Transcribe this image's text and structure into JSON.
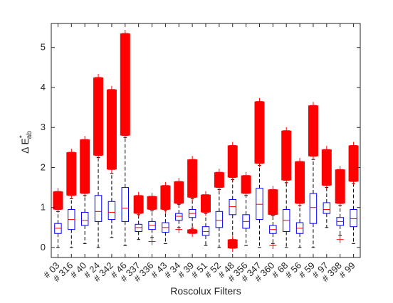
{
  "chart_data": {
    "type": "boxplot",
    "title": "",
    "xlabel": "Roscolux Filters",
    "ylabel_main": "Δ E",
    "ylabel_sup": "*",
    "ylabel_sub": "ab",
    "ylim": [
      -0.25,
      5.6
    ],
    "yticks": [
      0,
      1,
      2,
      3,
      4,
      5
    ],
    "grid": false,
    "colors": {
      "box": "#0000ff",
      "median": "#ff0000",
      "whisker": "#000000",
      "outlier": "#ff0000"
    },
    "categories": [
      "# 03",
      "# 316",
      "# 40",
      "# 24",
      "# 342",
      "# 46",
      "# 337",
      "# 336",
      "# 43",
      "# 34",
      "# 39",
      "# 51",
      "# 52",
      "# 48",
      "# 356",
      "# 347",
      "# 360",
      "# 68",
      "# 56",
      "# 59",
      "# 97",
      "# 398",
      "# 99"
    ],
    "boxes": [
      {
        "q1": 0.35,
        "median": 0.48,
        "q3": 0.6,
        "whisker_low": 0.0,
        "whisker_high": 0.9,
        "outliers_low": [],
        "outliers_high": [
          0.95,
          1.4
        ]
      },
      {
        "q1": 0.45,
        "median": 0.7,
        "q3": 0.95,
        "whisker_low": 0.0,
        "whisker_high": 1.22,
        "outliers_low": [],
        "outliers_high": [
          1.3,
          2.38
        ]
      },
      {
        "q1": 0.55,
        "median": 0.68,
        "q3": 0.88,
        "whisker_low": 0.1,
        "whisker_high": 1.3,
        "outliers_low": [],
        "outliers_high": [
          1.35,
          2.7
        ]
      },
      {
        "q1": 0.65,
        "median": 0.9,
        "q3": 1.3,
        "whisker_low": 0.0,
        "whisker_high": 2.25,
        "outliers_low": [],
        "outliers_high": [
          2.3,
          4.25
        ]
      },
      {
        "q1": 0.7,
        "median": 0.88,
        "q3": 1.15,
        "whisker_low": 0.25,
        "whisker_high": 1.85,
        "outliers_low": [],
        "outliers_high": [
          1.95,
          3.95
        ]
      },
      {
        "q1": 0.65,
        "median": 0.98,
        "q3": 1.5,
        "whisker_low": 0.05,
        "whisker_high": 2.75,
        "outliers_low": [],
        "outliers_high": [
          2.8,
          5.35
        ]
      },
      {
        "q1": 0.4,
        "median": 0.5,
        "q3": 0.58,
        "whisker_low": 0.2,
        "whisker_high": 0.82,
        "outliers_low": [],
        "outliers_high": [
          0.85,
          1.3
        ]
      },
      {
        "q1": 0.45,
        "median": 0.55,
        "q3": 0.65,
        "whisker_low": 0.25,
        "whisker_high": 0.92,
        "outliers_low": [
          0.15
        ],
        "outliers_high": [
          0.95,
          1.28
        ]
      },
      {
        "q1": 0.38,
        "median": 0.5,
        "q3": 0.62,
        "whisker_low": 0.1,
        "whisker_high": 0.92,
        "outliers_low": [],
        "outliers_high": [
          0.95,
          1.55
        ]
      },
      {
        "q1": 0.68,
        "median": 0.78,
        "q3": 0.85,
        "whisker_low": 0.5,
        "whisker_high": 1.08,
        "outliers_low": [
          0.45
        ],
        "outliers_high": [
          1.1,
          1.65
        ]
      },
      {
        "q1": 0.75,
        "median": 0.85,
        "q3": 0.95,
        "whisker_low": 0.48,
        "whisker_high": 1.22,
        "outliers_low": [
          0.35,
          0.45
        ],
        "outliers_high": [
          1.25,
          2.2
        ]
      },
      {
        "q1": 0.3,
        "median": 0.4,
        "q3": 0.52,
        "whisker_low": 0.05,
        "whisker_high": 0.85,
        "outliers_low": [],
        "outliers_high": [
          0.88,
          1.32
        ]
      },
      {
        "q1": 0.5,
        "median": 0.68,
        "q3": 0.9,
        "whisker_low": 0.0,
        "whisker_high": 1.45,
        "outliers_low": [],
        "outliers_high": [
          1.5,
          1.88
        ]
      },
      {
        "q1": 0.82,
        "median": 1.02,
        "q3": 1.2,
        "whisker_low": 0.1,
        "whisker_high": 1.7,
        "outliers_low": [
          -0.02,
          0.2
        ],
        "outliers_high": [
          1.75,
          2.55
        ]
      },
      {
        "q1": 0.48,
        "median": 0.65,
        "q3": 0.82,
        "whisker_low": 0.05,
        "whisker_high": 1.3,
        "outliers_low": [],
        "outliers_high": [
          1.35,
          1.8
        ]
      },
      {
        "q1": 0.7,
        "median": 1.08,
        "q3": 1.48,
        "whisker_low": 0.0,
        "whisker_high": 2.05,
        "outliers_low": [],
        "outliers_high": [
          2.1,
          3.65
        ]
      },
      {
        "q1": 0.35,
        "median": 0.45,
        "q3": 0.55,
        "whisker_low": 0.1,
        "whisker_high": 0.8,
        "outliers_low": [
          0.05
        ],
        "outliers_high": [
          0.82,
          1.45
        ]
      },
      {
        "q1": 0.4,
        "median": 0.68,
        "q3": 0.95,
        "whisker_low": 0.0,
        "whisker_high": 1.62,
        "outliers_low": [],
        "outliers_high": [
          1.68,
          2.92
        ]
      },
      {
        "q1": 0.35,
        "median": 0.48,
        "q3": 0.62,
        "whisker_low": 0.0,
        "whisker_high": 1.05,
        "outliers_low": [],
        "outliers_high": [
          1.1,
          2.15
        ]
      },
      {
        "q1": 0.6,
        "median": 1.0,
        "q3": 1.35,
        "whisker_low": 0.0,
        "whisker_high": 2.2,
        "outliers_low": [],
        "outliers_high": [
          2.28,
          3.55
        ]
      },
      {
        "q1": 0.85,
        "median": 0.95,
        "q3": 1.12,
        "whisker_low": 0.5,
        "whisker_high": 1.5,
        "outliers_low": [],
        "outliers_high": [
          1.55,
          2.45
        ]
      },
      {
        "q1": 0.55,
        "median": 0.65,
        "q3": 0.75,
        "whisker_low": 0.3,
        "whisker_high": 1.05,
        "outliers_low": [
          0.2
        ],
        "outliers_high": [
          1.1,
          1.95
        ]
      },
      {
        "q1": 0.52,
        "median": 0.72,
        "q3": 0.95,
        "whisker_low": 0.1,
        "whisker_high": 1.6,
        "outliers_low": [],
        "outliers_high": [
          1.65,
          2.55
        ]
      }
    ]
  }
}
